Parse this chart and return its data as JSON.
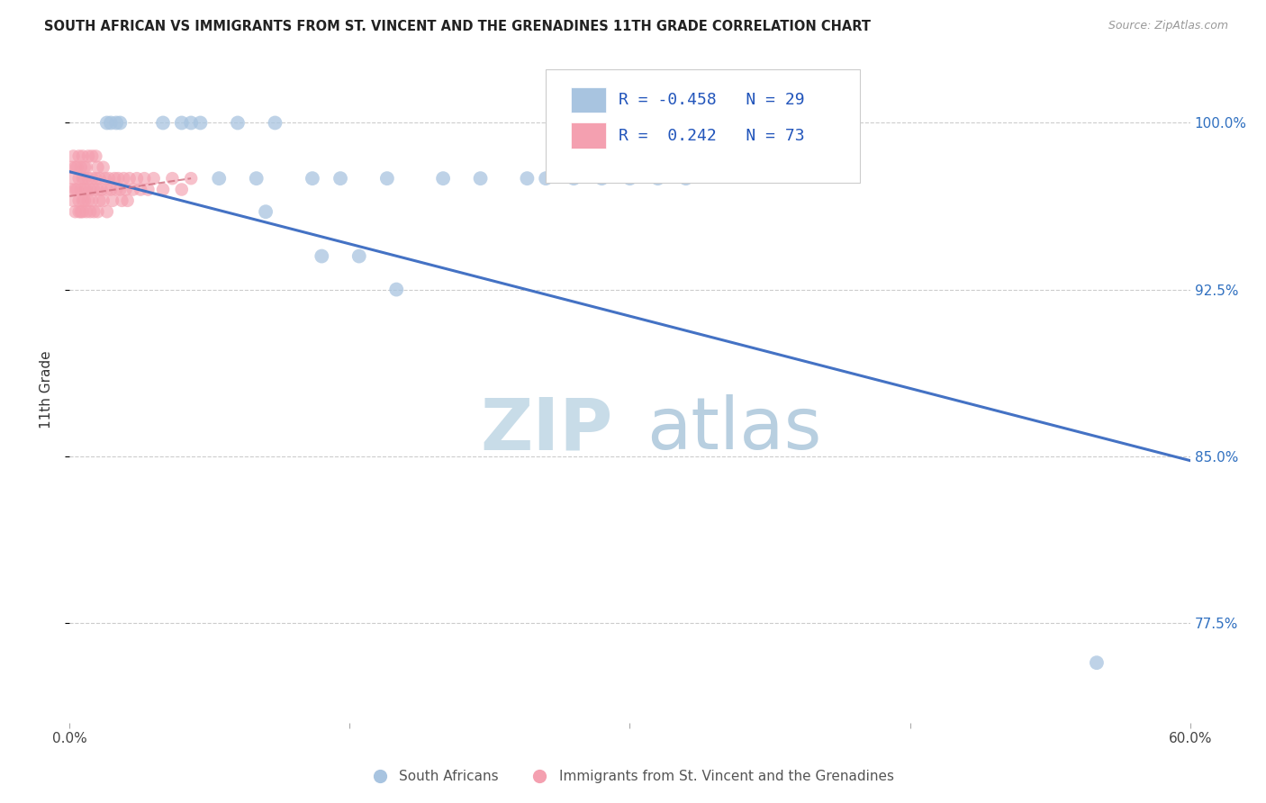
{
  "title": "SOUTH AFRICAN VS IMMIGRANTS FROM ST. VINCENT AND THE GRENADINES 11TH GRADE CORRELATION CHART",
  "source": "Source: ZipAtlas.com",
  "ylabel": "11th Grade",
  "ytick_labels": [
    "100.0%",
    "92.5%",
    "85.0%",
    "77.5%"
  ],
  "ytick_values": [
    1.0,
    0.925,
    0.85,
    0.775
  ],
  "xlim": [
    0.0,
    0.6
  ],
  "ylim": [
    0.73,
    1.03
  ],
  "blue_R": -0.458,
  "blue_N": 29,
  "pink_R": 0.242,
  "pink_N": 73,
  "blue_color": "#a8c4e0",
  "pink_color": "#f4a0b0",
  "blue_line_color": "#4472c4",
  "pink_line_color": "#d07080",
  "blue_scatter_x": [
    0.02,
    0.022,
    0.025,
    0.027,
    0.05,
    0.06,
    0.065,
    0.07,
    0.08,
    0.09,
    0.1,
    0.105,
    0.11,
    0.13,
    0.135,
    0.145,
    0.155,
    0.17,
    0.175,
    0.2,
    0.22,
    0.245,
    0.255,
    0.27,
    0.285,
    0.3,
    0.315,
    0.33,
    0.55
  ],
  "blue_scatter_y": [
    1.0,
    1.0,
    1.0,
    1.0,
    1.0,
    1.0,
    1.0,
    1.0,
    0.975,
    1.0,
    0.975,
    0.96,
    1.0,
    0.975,
    0.94,
    0.975,
    0.94,
    0.975,
    0.925,
    0.975,
    0.975,
    0.975,
    0.975,
    0.975,
    0.975,
    0.975,
    0.975,
    0.975,
    0.757
  ],
  "pink_scatter_x": [
    0.001,
    0.001,
    0.002,
    0.002,
    0.002,
    0.003,
    0.003,
    0.003,
    0.004,
    0.004,
    0.005,
    0.005,
    0.005,
    0.005,
    0.006,
    0.006,
    0.006,
    0.007,
    0.007,
    0.007,
    0.007,
    0.008,
    0.008,
    0.008,
    0.008,
    0.009,
    0.009,
    0.009,
    0.01,
    0.01,
    0.01,
    0.011,
    0.011,
    0.012,
    0.012,
    0.012,
    0.013,
    0.013,
    0.014,
    0.014,
    0.015,
    0.015,
    0.015,
    0.016,
    0.016,
    0.017,
    0.018,
    0.018,
    0.019,
    0.02,
    0.02,
    0.021,
    0.022,
    0.023,
    0.024,
    0.025,
    0.026,
    0.027,
    0.028,
    0.029,
    0.03,
    0.031,
    0.032,
    0.034,
    0.036,
    0.038,
    0.04,
    0.042,
    0.045,
    0.05,
    0.055,
    0.06,
    0.065
  ],
  "pink_scatter_y": [
    0.97,
    0.98,
    0.965,
    0.975,
    0.985,
    0.97,
    0.96,
    0.98,
    0.97,
    0.98,
    0.965,
    0.975,
    0.985,
    0.96,
    0.97,
    0.98,
    0.96,
    0.975,
    0.965,
    0.985,
    0.96,
    0.97,
    0.98,
    0.965,
    0.975,
    0.97,
    0.96,
    0.98,
    0.975,
    0.965,
    0.985,
    0.97,
    0.96,
    0.975,
    0.965,
    0.985,
    0.97,
    0.96,
    0.975,
    0.985,
    0.97,
    0.96,
    0.98,
    0.975,
    0.965,
    0.97,
    0.98,
    0.965,
    0.975,
    0.97,
    0.96,
    0.975,
    0.97,
    0.965,
    0.975,
    0.97,
    0.975,
    0.97,
    0.965,
    0.975,
    0.97,
    0.965,
    0.975,
    0.97,
    0.975,
    0.97,
    0.975,
    0.97,
    0.975,
    0.97,
    0.975,
    0.97,
    0.975
  ],
  "blue_trendline_x": [
    0.0,
    0.6
  ],
  "blue_trendline_y": [
    0.978,
    0.848
  ],
  "pink_trendline_x": [
    0.0,
    0.065
  ],
  "pink_trendline_y": [
    0.967,
    0.975
  ],
  "watermark_zip_color": "#c8dce8",
  "watermark_atlas_color": "#b8cfe0"
}
